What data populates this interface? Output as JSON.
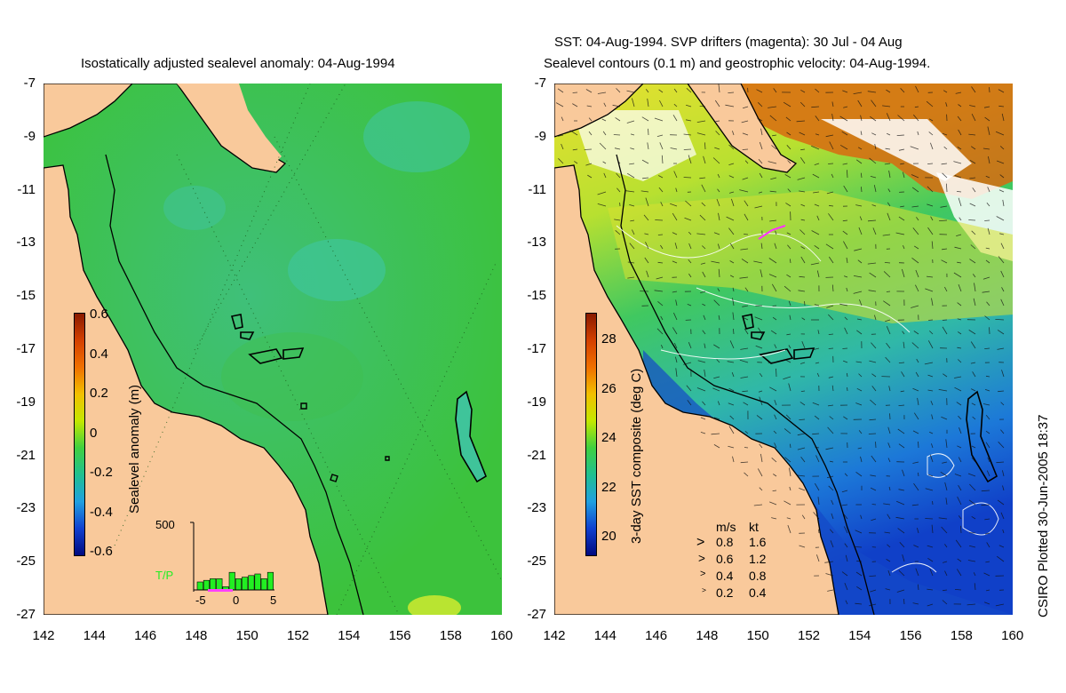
{
  "left_panel": {
    "title": "Isostatically adjusted sealevel anomaly: 04-Aug-1994",
    "colorbar": {
      "label": "Sealevel anomaly (m)",
      "ticks": [
        "0.6",
        "0.4",
        "0.2",
        "0",
        "-0.2",
        "-0.4",
        "-0.6"
      ],
      "range": [
        -0.6,
        0.6
      ]
    },
    "histogram": {
      "count_label": "500",
      "legend_label": "T/P",
      "legend_color": "#22ee22",
      "x_ticks": [
        "-5",
        "0",
        "5"
      ],
      "bar_values": [
        0.25,
        0.3,
        0.35,
        0.35,
        0.1,
        0.55,
        0.35,
        0.4,
        0.45,
        0.5,
        0.35,
        0.55
      ]
    }
  },
  "right_panel": {
    "title_line1": "SST: 04-Aug-1994. SVP drifters (magenta): 30 Jul - 04 Aug",
    "title_line2": "Sealevel contours (0.1 m) and geostrophic velocity: 04-Aug-1994.",
    "colorbar": {
      "label": "3-day SST composite (deg C)",
      "ticks": [
        "28",
        "26",
        "24",
        "22",
        "20"
      ],
      "range": [
        19,
        29
      ]
    },
    "velocity_legend": {
      "headers": [
        "m/s",
        "kt"
      ],
      "rows": [
        {
          "ms": "0.8",
          "kt": "1.6"
        },
        {
          "ms": "0.6",
          "kt": "1.2"
        },
        {
          "ms": "0.4",
          "kt": "0.8"
        },
        {
          "ms": "0.2",
          "kt": "0.4"
        }
      ]
    }
  },
  "axes": {
    "y_ticks": [
      "-7",
      "-9",
      "-11",
      "-13",
      "-15",
      "-17",
      "-19",
      "-21",
      "-23",
      "-25",
      "-27"
    ],
    "x_ticks": [
      "142",
      "144",
      "146",
      "148",
      "150",
      "152",
      "154",
      "156",
      "158",
      "160"
    ],
    "lat_range": [
      -27,
      -7
    ],
    "lon_range": [
      142,
      160
    ]
  },
  "credit": "CSIRO Plotted 30-Jun-2005 18:37",
  "colors": {
    "land": "#f9c99b",
    "sea_anomaly": "#3cc23c",
    "sst_warm": "#e8d82a",
    "sst_cool": "#1650c8"
  }
}
